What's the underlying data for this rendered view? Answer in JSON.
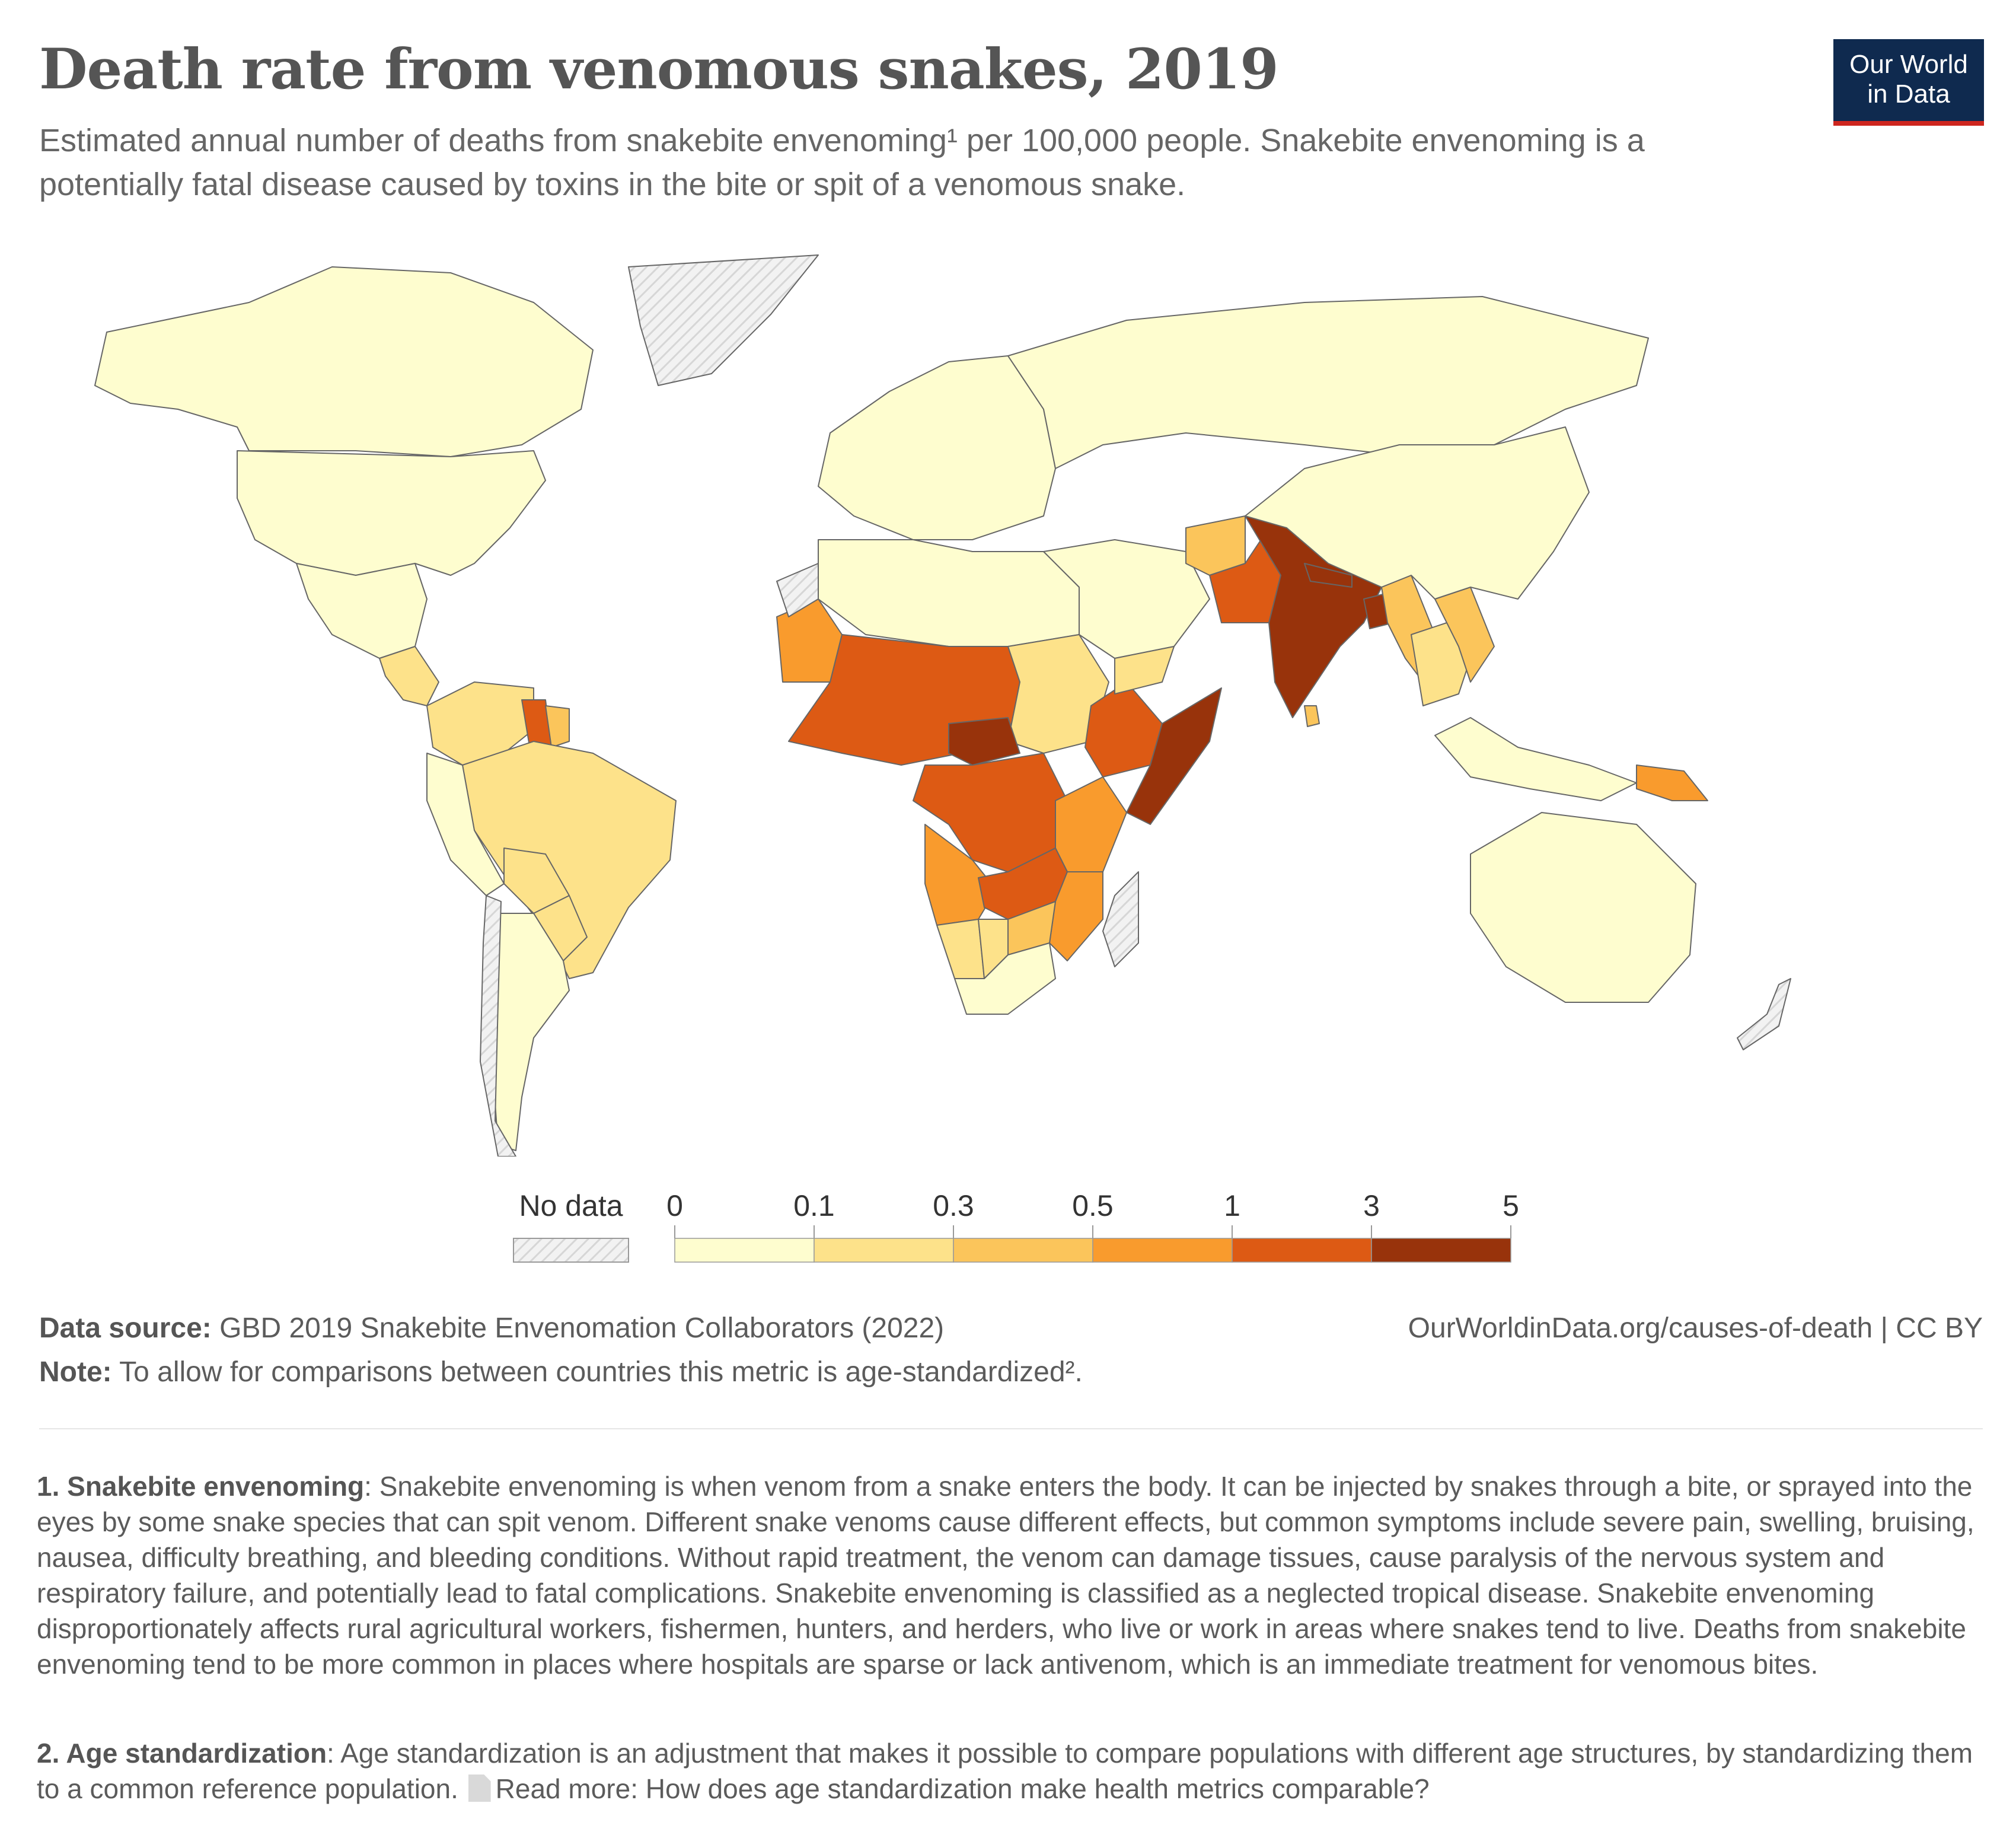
{
  "header": {
    "title": "Death rate from venomous snakes, 2019",
    "subtitle": "Estimated annual number of deaths from snakebite envenoming¹ per 100,000 people. Snakebite envenoming is a potentially fatal disease caused by toxins in the bite or spit of a venomous snake."
  },
  "logo": {
    "line1": "Our World",
    "line2": "in Data"
  },
  "legend": {
    "no_data_label": "No data",
    "bins": [
      "0",
      "0.1",
      "0.3",
      "0.5",
      "1",
      "3",
      "5"
    ],
    "colors": [
      "#fefdcf",
      "#fde28a",
      "#fbc55b",
      "#f99b2d",
      "#dd5a14",
      "#98330b"
    ],
    "no_data_color": "#e8e8e8"
  },
  "footer": {
    "source_label": "Data source:",
    "source_text": "GBD 2019 Snakebite Envenomation Collaborators (2022)",
    "url": "OurWorldinData.org/causes-of-death",
    "license": "| CC BY",
    "note_label": "Note:",
    "note_text": "To allow for comparisons between countries this metric is  age-standardized².",
    "footnote1_label": "1. Snakebite envenoming",
    "footnote1_text": ": Snakebite envenoming is when venom from a snake enters the body. It can be injected by snakes through a bite, or sprayed into the eyes by some snake species that can spit venom. Different snake venoms cause different effects, but common symptoms include severe pain, swelling, bruising, nausea, difficulty breathing, and bleeding conditions. Without rapid treatment, the venom can damage tissues, cause paralysis of the nervous system and respiratory failure, and potentially lead to fatal complications. Snakebite envenoming is classified as a neglected tropical disease. Snakebite envenoming disproportionately affects rural agricultural workers, fishermen, hunters, and herders, who live or work in areas where snakes tend to live. Deaths from snakebite envenoming tend to be more common in places where hospitals are sparse or lack antivenom, which is an immediate treatment for venomous bites.",
    "footnote2_label": "2. Age standardization",
    "footnote2_text": ": Age standardization is an adjustment that makes it possible to compare populations with different age structures, by standardizing them to a common reference population.",
    "footnote2_link": "Read more: How does age standardization make health metrics comparable?"
  },
  "map_regions": [
    {
      "name": "Canada",
      "bin": 0
    },
    {
      "name": "United States",
      "bin": 0
    },
    {
      "name": "Greenland",
      "bin": -1
    },
    {
      "name": "Mexico",
      "bin": 0
    },
    {
      "name": "Central America",
      "bin": 1
    },
    {
      "name": "Colombia / Venezuela",
      "bin": 1
    },
    {
      "name": "Guyana",
      "bin": 4
    },
    {
      "name": "Suriname",
      "bin": 2
    },
    {
      "name": "Brazil",
      "bin": 1
    },
    {
      "name": "Peru",
      "bin": 0
    },
    {
      "name": "Bolivia",
      "bin": 1
    },
    {
      "name": "Paraguay",
      "bin": 1
    },
    {
      "name": "Argentina",
      "bin": 0
    },
    {
      "name": "Chile",
      "bin": -1
    },
    {
      "name": "Europe",
      "bin": 0
    },
    {
      "name": "Russia",
      "bin": 0
    },
    {
      "name": "North Africa",
      "bin": 0
    },
    {
      "name": "Mauritania",
      "bin": 3
    },
    {
      "name": "Western Sahara",
      "bin": -1
    },
    {
      "name": "Sahel",
      "bin": 4
    },
    {
      "name": "Sudan",
      "bin": 1
    },
    {
      "name": "Ethiopia",
      "bin": 4
    },
    {
      "name": "Somalia",
      "bin": 5
    },
    {
      "name": "Central African Republic",
      "bin": 5
    },
    {
      "name": "DR Congo",
      "bin": 4
    },
    {
      "name": "Angola",
      "bin": 3
    },
    {
      "name": "Tanzania",
      "bin": 3
    },
    {
      "name": "Zambia / Malawi",
      "bin": 4
    },
    {
      "name": "Mozambique",
      "bin": 3
    },
    {
      "name": "Namibia",
      "bin": 1
    },
    {
      "name": "Zimbabwe",
      "bin": 2
    },
    {
      "name": "Botswana",
      "bin": 1
    },
    {
      "name": "South Africa",
      "bin": 0
    },
    {
      "name": "Madagascar",
      "bin": -1
    },
    {
      "name": "Middle East",
      "bin": 0
    },
    {
      "name": "Yemen",
      "bin": 1
    },
    {
      "name": "Afghanistan",
      "bin": 2
    },
    {
      "name": "Pakistan",
      "bin": 4
    },
    {
      "name": "India",
      "bin": 5
    },
    {
      "name": "Nepal",
      "bin": 5
    },
    {
      "name": "Bangladesh",
      "bin": 5
    },
    {
      "name": "Sri Lanka",
      "bin": 2
    },
    {
      "name": "Myanmar",
      "bin": 2
    },
    {
      "name": "Thailand / Cambodia",
      "bin": 1
    },
    {
      "name": "Laos / Vietnam",
      "bin": 2
    },
    {
      "name": "China",
      "bin": 0
    },
    {
      "name": "Indonesia",
      "bin": 0
    },
    {
      "name": "Papua New Guinea",
      "bin": 3
    },
    {
      "name": "Australia",
      "bin": 0
    },
    {
      "name": "New Zealand",
      "bin": -1
    }
  ]
}
